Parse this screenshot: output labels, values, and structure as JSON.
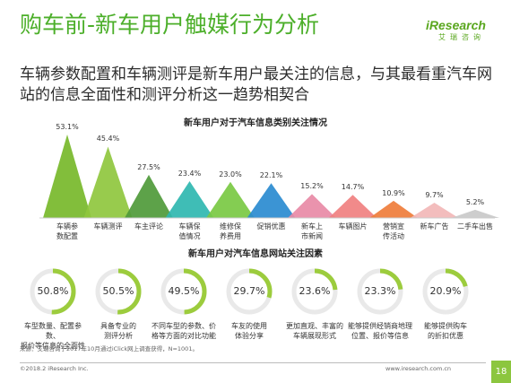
{
  "header": {
    "title": "购车前-新车用户触媒行为分析",
    "lead": "车辆参数配置和车辆测评是新车用户最关注的信息，与其最看重汽车网站的信息全面性和测评分析这一趋势相契合"
  },
  "logo": {
    "brand": "iResearch",
    "sub": "艾瑞咨询"
  },
  "colors": {
    "peaks": [
      "#77b82a",
      "#8fc73e",
      "#4f9a3a",
      "#2fb7b0",
      "#7ac943",
      "#2a8bd0",
      "#e88aa6",
      "#f08080",
      "#ef7d3b",
      "#f2b7b7",
      "#c9c9c9"
    ],
    "ring": "#9ccc3d",
    "ring_bg": "#e9e9e9"
  },
  "chart_data": [
    {
      "type": "area",
      "title": "新车用户对于汽车信息类别关注情况",
      "categories": [
        "车辆参数配置",
        "车辆测评",
        "车主评论",
        "车辆保值情况",
        "维修保养费用",
        "促销优惠",
        "新车上市新闻",
        "车辆图片",
        "营销宣传活动",
        "新车广告",
        "二手车出售"
      ],
      "values": [
        53.1,
        45.4,
        27.5,
        23.4,
        23.0,
        22.1,
        15.2,
        14.7,
        10.9,
        9.7,
        5.2
      ],
      "value_labels": [
        "53.1%",
        "45.4%",
        "27.5%",
        "23.4%",
        "23.0%",
        "22.1%",
        "15.2%",
        "14.7%",
        "10.9%",
        "9.7%",
        "5.2%"
      ],
      "category_lines": [
        [
          "车辆参",
          "数配置"
        ],
        [
          "车辆测评"
        ],
        [
          "车主评论"
        ],
        [
          "车辆保",
          "值情况"
        ],
        [
          "维修保",
          "养费用"
        ],
        [
          "促销优惠"
        ],
        [
          "新车上",
          "市新闻"
        ],
        [
          "车辆图片"
        ],
        [
          "营销宣",
          "传活动"
        ],
        [
          "新车广告"
        ],
        [
          "二手车出售"
        ]
      ],
      "unit": "%",
      "ylim": [
        0,
        53.1
      ],
      "grid": false
    },
    {
      "type": "pie",
      "title": "新车用户对汽车信息网站关注因素",
      "values": [
        50.8,
        50.5,
        49.5,
        29.7,
        23.6,
        23.3,
        20.9
      ],
      "value_labels": [
        "50.8%",
        "50.5%",
        "49.5%",
        "29.7%",
        "23.6%",
        "23.3%",
        "20.9%"
      ],
      "descriptions": [
        [
          "车型数量、配置参数、",
          "报价等信息的全面性"
        ],
        [
          "具备专业的",
          "测评分析"
        ],
        [
          "不同车型的参数、价",
          "格等方面的对比功能"
        ],
        [
          "车友的使用",
          "体验分享"
        ],
        [
          "更加直观、丰富的",
          "车辆展现形式"
        ],
        [
          "能够提供经销商地理",
          "位置、报价等信息"
        ],
        [
          "能够提供购车",
          "的折扣优惠"
        ]
      ],
      "unit": "%"
    }
  ],
  "footer": {
    "source": "来源：艾瑞咨询于2017年10月通过iClick网上调查获得，N=1001。",
    "copyright": "©2018.2  iResearch Inc.",
    "site": "www.iresearch.com.cn",
    "page": "18"
  }
}
